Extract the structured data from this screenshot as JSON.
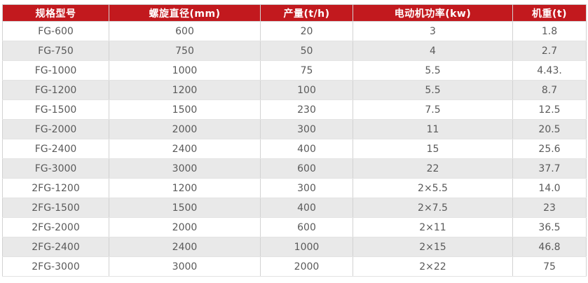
{
  "colors": {
    "header_bg": "#c2191e",
    "header_text": "#ffffff",
    "row_bg": "#ffffff",
    "row_alt_bg": "#e9e9e9",
    "body_text": "#5a5a5a",
    "border_outer": "#c9c9c9",
    "border_vertical": "#d2d2d2",
    "border_horizontal": "#e3e3e3"
  },
  "chart_data": {
    "type": "table",
    "columns": [
      "规格型号",
      "螺旋直径(mm)",
      "产量(t/h)",
      "电动机功率(kw)",
      "机重(t)"
    ],
    "column_keys": [
      "model",
      "diameter",
      "output",
      "power",
      "weight"
    ],
    "rows": [
      [
        "FG-600",
        "600",
        "20",
        "3",
        "1.8"
      ],
      [
        "FG-750",
        "750",
        "50",
        "4",
        "2.7"
      ],
      [
        "FG-1000",
        "1000",
        "75",
        "5.5",
        "4.43."
      ],
      [
        "FG-1200",
        "1200",
        "100",
        "5.5",
        "8.7"
      ],
      [
        "FG-1500",
        "1500",
        "230",
        "7.5",
        "12.5"
      ],
      [
        "FG-2000",
        "2000",
        "300",
        "11",
        "20.5"
      ],
      [
        "FG-2400",
        "2400",
        "400",
        "15",
        "25.6"
      ],
      [
        "FG-3000",
        "3000",
        "600",
        "22",
        "37.7"
      ],
      [
        "2FG-1200",
        "1200",
        "300",
        "2×5.5",
        "14.0"
      ],
      [
        "2FG-1500",
        "1500",
        "400",
        "2×7.5",
        "23"
      ],
      [
        "2FG-2000",
        "2000",
        "600",
        "2×11",
        "36.5"
      ],
      [
        "2FG-2400",
        "2400",
        "1000",
        "2×15",
        "46.8"
      ],
      [
        "2FG-3000",
        "3000",
        "2000",
        "2×22",
        "75"
      ]
    ]
  }
}
